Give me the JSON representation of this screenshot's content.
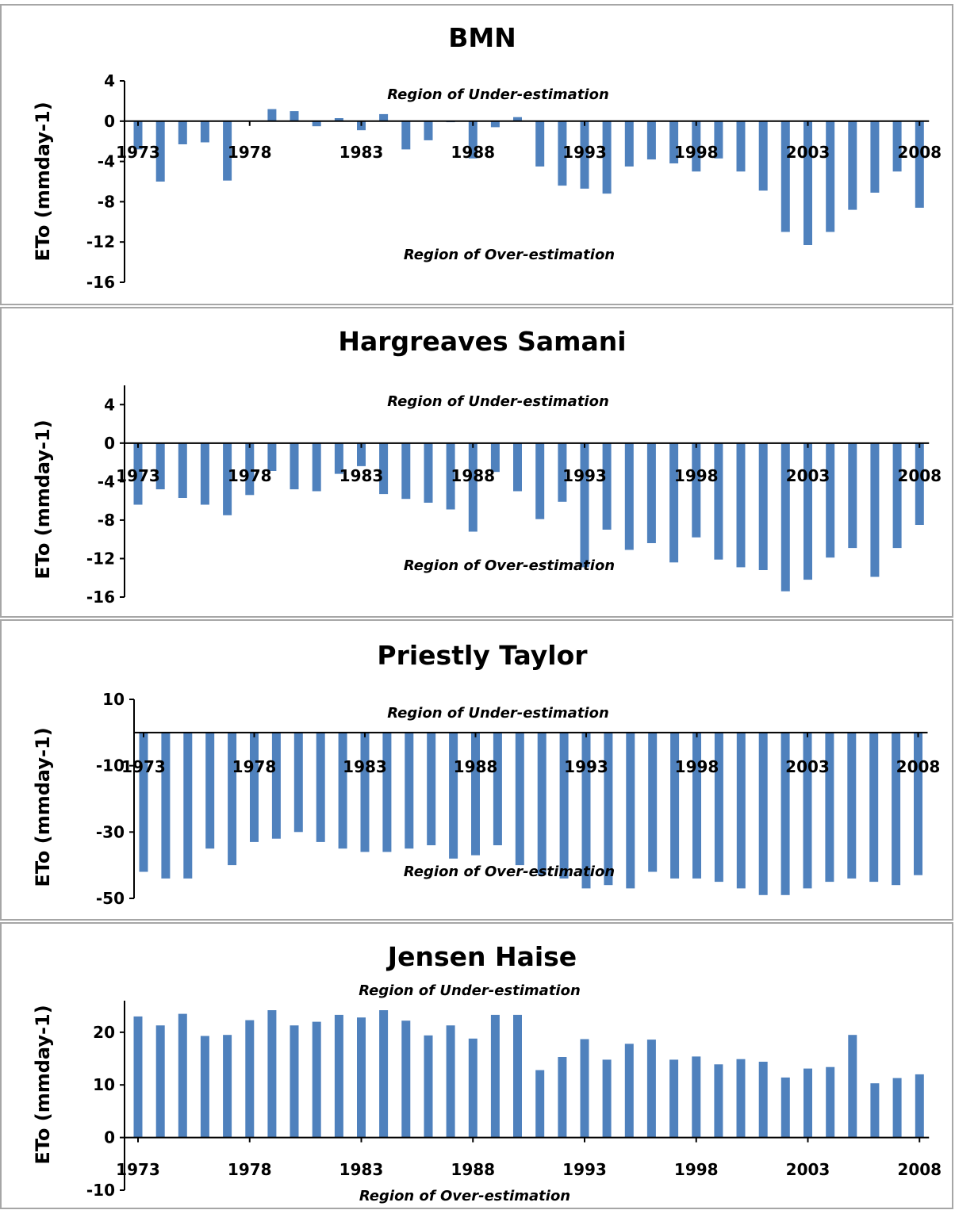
{
  "chart_data": [
    {
      "type": "bar",
      "title": "BMN",
      "ylabel": "ETo (mmday-1)",
      "ylim": [
        -16,
        4
      ],
      "yticks": [
        4,
        0,
        -4,
        -8,
        -12,
        -16
      ],
      "x": [
        1973,
        1974,
        1975,
        1976,
        1977,
        1978,
        1979,
        1980,
        1981,
        1982,
        1983,
        1984,
        1985,
        1986,
        1987,
        1988,
        1989,
        1990,
        1991,
        1992,
        1993,
        1994,
        1995,
        1996,
        1997,
        1998,
        1999,
        2000,
        2001,
        2002,
        2003,
        2004,
        2005,
        2006,
        2007,
        2008
      ],
      "values": [
        -2.8,
        -6.0,
        -2.3,
        -2.1,
        -5.9,
        0.0,
        1.2,
        1.0,
        -0.5,
        0.3,
        -0.9,
        0.7,
        -2.8,
        -1.9,
        -0.1,
        -3.7,
        -0.6,
        0.4,
        -4.5,
        -6.4,
        -6.7,
        -7.2,
        -4.5,
        -3.8,
        -4.2,
        -5.0,
        -3.7,
        -5.0,
        -6.9,
        -11.0,
        -12.3,
        -11.0,
        -8.8,
        -7.1,
        -5.0,
        -8.6
      ],
      "xtick_labels": [
        "1973",
        "1978",
        "1983",
        "1988",
        "1993",
        "1998",
        "2003",
        "2008"
      ],
      "annotations": [
        "Region of Under-estimation",
        "Region of Over-estimation"
      ],
      "grid": false,
      "bar_color": "#4f81bd"
    },
    {
      "type": "bar",
      "title": "Hargreaves Samani",
      "ylabel": "ETo (mmday-1)",
      "ylim": [
        -16,
        6
      ],
      "yticks": [
        4,
        0,
        -4,
        -8,
        -12,
        -16
      ],
      "x": [
        1973,
        1974,
        1975,
        1976,
        1977,
        1978,
        1979,
        1980,
        1981,
        1982,
        1983,
        1984,
        1985,
        1986,
        1987,
        1988,
        1989,
        1990,
        1991,
        1992,
        1993,
        1994,
        1995,
        1996,
        1997,
        1998,
        1999,
        2000,
        2001,
        2002,
        2003,
        2004,
        2005,
        2006,
        2007,
        2008
      ],
      "values": [
        -6.4,
        -4.8,
        -5.7,
        -6.4,
        -7.5,
        -5.4,
        -2.9,
        -4.8,
        -5.0,
        -3.2,
        -2.4,
        -5.3,
        -5.8,
        -6.2,
        -6.9,
        -9.2,
        -3.0,
        -5.0,
        -7.9,
        -6.1,
        -12.9,
        -9.0,
        -11.1,
        -10.4,
        -12.4,
        -9.8,
        -12.1,
        -12.9,
        -13.2,
        -15.4,
        -14.2,
        -11.9,
        -10.9,
        -13.9,
        -10.9,
        -8.5
      ],
      "xtick_labels": [
        "1973",
        "1978",
        "1983",
        "1988",
        "1993",
        "1998",
        "2003",
        "2008"
      ],
      "annotations": [
        "Region of Under-estimation",
        "Region of Over-estimation"
      ],
      "grid": false,
      "bar_color": "#4f81bd"
    },
    {
      "type": "bar",
      "title": "Priestly Taylor",
      "ylabel": "ETo (mmday-1)",
      "ylim": [
        -50,
        10
      ],
      "yticks": [
        10,
        -10,
        -30,
        -50
      ],
      "x": [
        1973,
        1974,
        1975,
        1976,
        1977,
        1978,
        1979,
        1980,
        1981,
        1982,
        1983,
        1984,
        1985,
        1986,
        1987,
        1988,
        1989,
        1990,
        1991,
        1992,
        1993,
        1994,
        1995,
        1996,
        1997,
        1998,
        1999,
        2000,
        2001,
        2002,
        2003,
        2004,
        2005,
        2006,
        2007,
        2008
      ],
      "values": [
        -42,
        -44,
        -44,
        -35,
        -40,
        -33,
        -32,
        -30,
        -33,
        -35,
        -36,
        -36,
        -35,
        -34,
        -38,
        -37,
        -34,
        -40,
        -43,
        -44,
        -47,
        -46,
        -47,
        -42,
        -44,
        -44,
        -45,
        -47,
        -49,
        -49,
        -47,
        -45,
        -44,
        -45,
        -46,
        -43
      ],
      "xtick_labels": [
        "1973",
        "1978",
        "1983",
        "1988",
        "1993",
        "1998",
        "2003",
        "2008"
      ],
      "annotations": [
        "Region of Under-estimation",
        "Region of Over-estimation"
      ],
      "grid": false,
      "bar_color": "#4f81bd"
    },
    {
      "type": "bar",
      "title": "Jensen Haise",
      "ylabel": "ETo (mmday-1)",
      "ylim": [
        -10,
        26
      ],
      "yticks": [
        20,
        10,
        0,
        -10
      ],
      "x": [
        1973,
        1974,
        1975,
        1976,
        1977,
        1978,
        1979,
        1980,
        1981,
        1982,
        1983,
        1984,
        1985,
        1986,
        1987,
        1988,
        1989,
        1990,
        1991,
        1992,
        1993,
        1994,
        1995,
        1996,
        1997,
        1998,
        1999,
        2000,
        2001,
        2002,
        2003,
        2004,
        2005,
        2006,
        2007,
        2008
      ],
      "values": [
        23.0,
        21.3,
        23.5,
        19.3,
        19.5,
        22.3,
        24.2,
        21.3,
        22.0,
        23.3,
        22.8,
        24.2,
        22.2,
        19.4,
        21.3,
        18.8,
        23.3,
        23.3,
        12.8,
        15.3,
        18.7,
        14.8,
        17.8,
        18.6,
        14.8,
        15.4,
        13.9,
        14.9,
        14.4,
        11.4,
        13.1,
        13.4,
        19.5,
        10.3,
        11.3,
        12.0
      ],
      "xtick_labels": [
        "1973",
        "1978",
        "1983",
        "1988",
        "1993",
        "1998",
        "2003",
        "2008"
      ],
      "annotations": [
        "Region of Under-estimation",
        "Region of Over-estimation"
      ],
      "grid": false,
      "bar_color": "#4f81bd"
    }
  ]
}
